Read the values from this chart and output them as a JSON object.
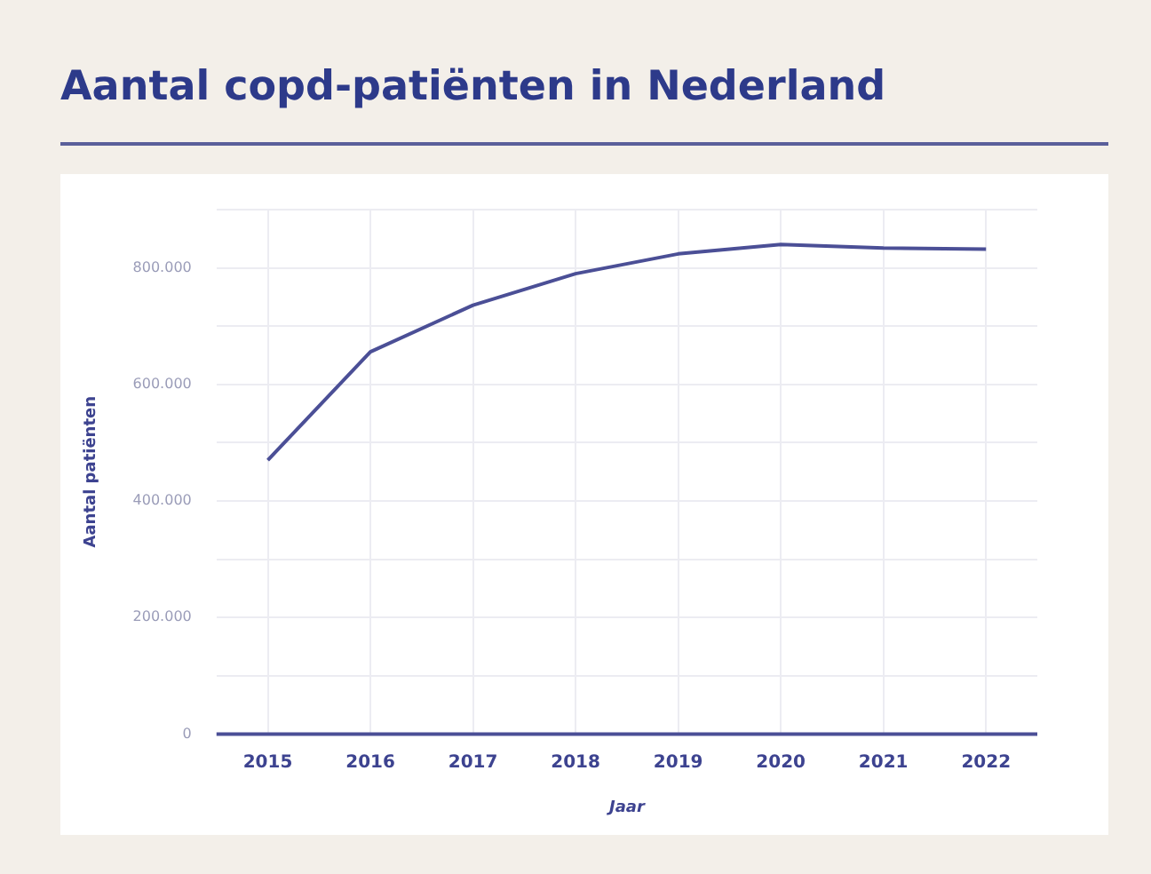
{
  "chart_data": {
    "type": "line",
    "title": "Aantal copd-patiënten in Nederland",
    "xlabel": "Jaar",
    "ylabel": "Aantal patiënten",
    "categories": [
      "2015",
      "2016",
      "2017",
      "2018",
      "2019",
      "2020",
      "2021",
      "2022"
    ],
    "series": [
      {
        "color": "#4b4f96",
        "values": [
          470000,
          656000,
          736000,
          790000,
          824000,
          840000,
          834000,
          832000
        ]
      }
    ],
    "ylim": [
      0,
      900000
    ],
    "yticks": [
      {
        "value": 0,
        "label": "0"
      },
      {
        "value": 100000,
        "label": null
      },
      {
        "value": 200000,
        "label": "200.000"
      },
      {
        "value": 300000,
        "label": null
      },
      {
        "value": 400000,
        "label": "400.000"
      },
      {
        "value": 500000,
        "label": null
      },
      {
        "value": 600000,
        "label": "600.000"
      },
      {
        "value": 700000,
        "label": null
      },
      {
        "value": 800000,
        "label": "800.000"
      },
      {
        "value": 900000,
        "label": null
      }
    ],
    "grid": true,
    "legend": false,
    "marker": "none",
    "line_style": "solid"
  }
}
